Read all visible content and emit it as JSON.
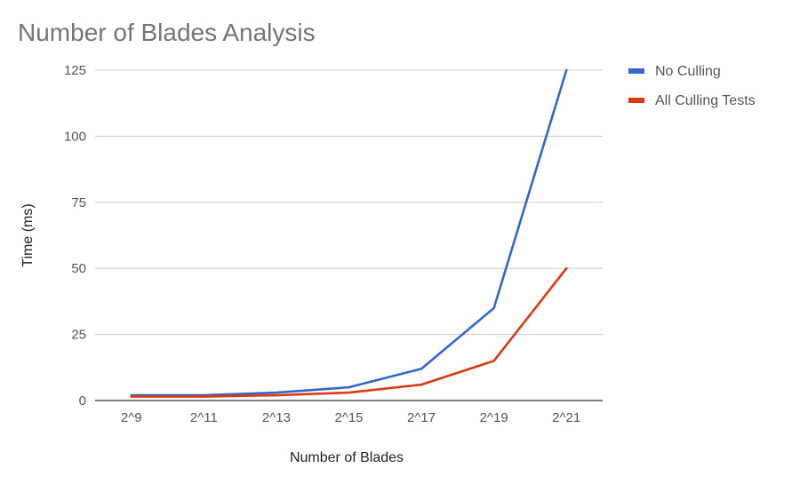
{
  "chart_data": {
    "type": "line",
    "title": "Number of Blades Analysis",
    "xlabel": "Number of Blades",
    "ylabel": "Time (ms)",
    "categories": [
      "2^9",
      "2^11",
      "2^13",
      "2^15",
      "2^17",
      "2^19",
      "2^21"
    ],
    "ylim": [
      0,
      125
    ],
    "yticks": [
      0,
      25,
      50,
      75,
      100,
      125
    ],
    "grid": true,
    "legend_position": "top-right",
    "series": [
      {
        "name": "No Culling",
        "color": "#3366cc",
        "values": [
          2,
          2,
          3,
          5,
          12,
          35,
          125
        ]
      },
      {
        "name": "All Culling Tests",
        "color": "#dc3912",
        "values": [
          1.5,
          1.5,
          2,
          3,
          6,
          15,
          50
        ]
      }
    ]
  }
}
